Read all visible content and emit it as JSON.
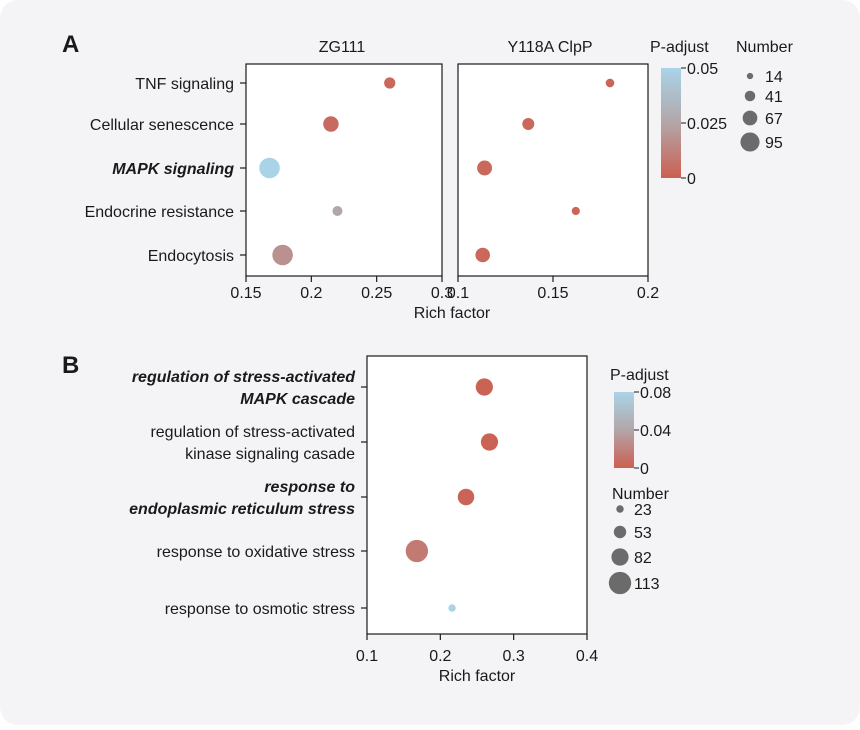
{
  "panels": {
    "a": {
      "letter": "A"
    },
    "b": {
      "letter": "B"
    }
  },
  "colors": {
    "high_p": "#a9d4e8",
    "mid_p": "#b2a6a8",
    "low_p": "#cc5f51",
    "legend_dot": "#6b6b6b"
  },
  "chart_data": [
    {
      "type": "scatter",
      "subtype": "dot-plot",
      "xlabel": "Rich factor",
      "categories": [
        "TNF signaling",
        "Cellular senescence",
        "MAPK signaling",
        "Endocrine resistance",
        "Endocytosis"
      ],
      "emphasized_categories": [
        "MAPK signaling"
      ],
      "facets": [
        {
          "title": "ZG111",
          "xlim": [
            0.15,
            0.3
          ],
          "xticks": [
            "0.15",
            "0.2",
            "0.25",
            "0.3"
          ],
          "points": [
            {
              "category": "TNF signaling",
              "x": 0.26,
              "p_adjust": 0.003,
              "number": 40
            },
            {
              "category": "Cellular senescence",
              "x": 0.215,
              "p_adjust": 0.004,
              "number": 65
            },
            {
              "category": "MAPK signaling",
              "x": 0.168,
              "p_adjust": 0.05,
              "number": 95
            },
            {
              "category": "Endocrine resistance",
              "x": 0.22,
              "p_adjust": 0.025,
              "number": 33
            },
            {
              "category": "Endocytosis",
              "x": 0.178,
              "p_adjust": 0.018,
              "number": 95
            }
          ]
        },
        {
          "title": "Y118A ClpP",
          "xlim": [
            0.1,
            0.2
          ],
          "xticks": [
            "0.1",
            "0.15",
            "0.2"
          ],
          "points": [
            {
              "category": "TNF signaling",
              "x": 0.18,
              "p_adjust": 0.002,
              "number": 25
            },
            {
              "category": "Cellular senescence",
              "x": 0.137,
              "p_adjust": 0.003,
              "number": 45
            },
            {
              "category": "MAPK signaling",
              "x": 0.114,
              "p_adjust": 0.003,
              "number": 62
            },
            {
              "category": "Endocrine resistance",
              "x": 0.162,
              "p_adjust": 0.002,
              "number": 22
            },
            {
              "category": "Endocytosis",
              "x": 0.113,
              "p_adjust": 0.003,
              "number": 60
            }
          ]
        }
      ],
      "color_legend": {
        "title": "P-adjust",
        "min": 0,
        "max": 0.05,
        "ticks": [
          0.05,
          0.025,
          0
        ],
        "tick_labels": [
          "0.05",
          "0.025",
          "0"
        ]
      },
      "size_legend": {
        "title": "Number",
        "values": [
          14,
          41,
          67,
          95
        ],
        "labels": [
          "14",
          "41",
          "67",
          "95"
        ]
      }
    },
    {
      "type": "scatter",
      "subtype": "dot-plot",
      "xlabel": "Rich factor",
      "xlim": [
        0.1,
        0.4
      ],
      "xticks": [
        "0.1",
        "0.2",
        "0.3",
        "0.4"
      ],
      "categories": [
        {
          "lines": [
            "regulation of stress-activated",
            "MAPK cascade"
          ],
          "emphasized": true
        },
        {
          "lines": [
            "regulation of stress-activated",
            "kinase signaling casade"
          ],
          "emphasized": false
        },
        {
          "lines": [
            "response to",
            "endoplasmic reticulum stress"
          ],
          "emphasized": true
        },
        {
          "lines": [
            "response to oxidative stress"
          ],
          "emphasized": false
        },
        {
          "lines": [
            "response to osmotic stress"
          ],
          "emphasized": false
        }
      ],
      "points": [
        {
          "x": 0.26,
          "p_adjust": 0.002,
          "number": 82
        },
        {
          "x": 0.267,
          "p_adjust": 0.002,
          "number": 82
        },
        {
          "x": 0.235,
          "p_adjust": 0.003,
          "number": 78
        },
        {
          "x": 0.168,
          "p_adjust": 0.015,
          "number": 113
        },
        {
          "x": 0.216,
          "p_adjust": 0.08,
          "number": 23
        }
      ],
      "color_legend": {
        "title": "P-adjust",
        "min": 0,
        "max": 0.08,
        "ticks": [
          0.08,
          0.04,
          0
        ],
        "tick_labels": [
          "0.08",
          "0.04",
          "0"
        ]
      },
      "size_legend": {
        "title": "Number",
        "values": [
          23,
          53,
          82,
          113
        ],
        "labels": [
          "23",
          "53",
          "82",
          "113"
        ]
      }
    }
  ]
}
